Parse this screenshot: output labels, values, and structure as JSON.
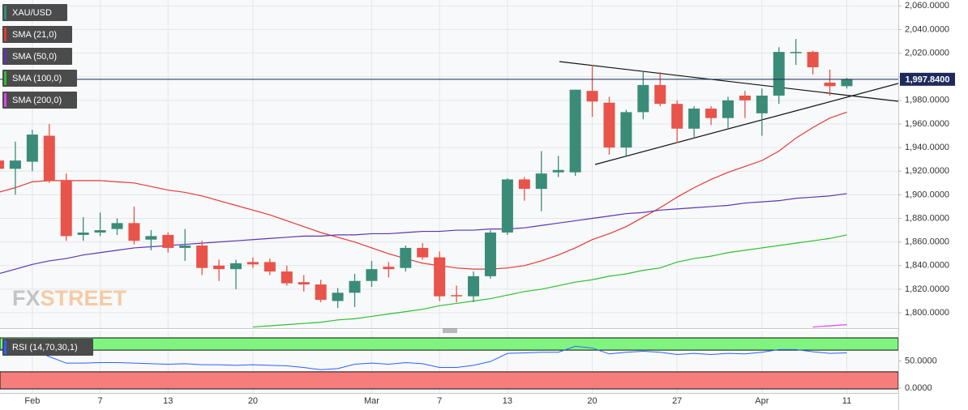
{
  "chart_data": {
    "type": "candlestick",
    "symbol": "XAU/USD",
    "categories": [
      null,
      null,
      "Feb",
      null,
      null,
      null,
      "7",
      null,
      null,
      null,
      "13",
      null,
      null,
      null,
      null,
      "20",
      null,
      null,
      null,
      null,
      null,
      null,
      "Mar",
      null,
      null,
      null,
      "7",
      null,
      null,
      null,
      "13",
      null,
      null,
      null,
      null,
      "20",
      null,
      null,
      null,
      null,
      "27",
      null,
      null,
      null,
      null,
      "Apr",
      null,
      null,
      null,
      null,
      "11"
    ],
    "open": [
      1929,
      1922,
      1928,
      1950,
      1912,
      1866,
      1868,
      1871,
      1876,
      1862,
      1866,
      1855,
      1857,
      1840,
      1837,
      1843,
      1843,
      1835,
      1826,
      1824,
      1810,
      1817,
      1827,
      1839,
      1838,
      1855,
      1847,
      1815,
      1814,
      1831,
      1868,
      1913,
      1905,
      1919,
      1919,
      1988,
      1978,
      1940,
      1970,
      1993,
      1977,
      1956,
      1973,
      1965,
      1984,
      1969,
      1984,
      2020,
      2021,
      1995,
      1992
    ],
    "high": [
      1935,
      1945,
      1955,
      1960,
      1918,
      1881,
      1885,
      1880,
      1890,
      1870,
      1868,
      1871,
      1861,
      1845,
      1845,
      1847,
      1846,
      1840,
      1832,
      1828,
      1821,
      1833,
      1844,
      1843,
      1857,
      1859,
      1852,
      1823,
      1835,
      1870,
      1914,
      1915,
      1937,
      1933,
      1989,
      2010,
      1983,
      1972,
      2004,
      2004,
      1980,
      1975,
      1975,
      1983,
      1988,
      1990,
      2025,
      2032,
      2022,
      2006,
      1999
    ],
    "low": [
      1920,
      1900,
      1920,
      1910,
      1861,
      1861,
      1865,
      1866,
      1858,
      1853,
      1851,
      1844,
      1832,
      1827,
      1820,
      1838,
      1832,
      1823,
      1818,
      1809,
      1804,
      1805,
      1822,
      1830,
      1835,
      1845,
      1810,
      1809,
      1809,
      1829,
      1866,
      1895,
      1886,
      1915,
      1916,
      1966,
      1934,
      1933,
      1964,
      1975,
      1944,
      1949,
      1959,
      1955,
      1965,
      1950,
      1977,
      2010,
      2002,
      1984,
      1990
    ],
    "close": [
      1922,
      1929,
      1951,
      1912,
      1865,
      1868,
      1870,
      1876,
      1861,
      1865,
      1855,
      1857,
      1838,
      1837,
      1842,
      1841,
      1835,
      1825,
      1824,
      1811,
      1817,
      1827,
      1837,
      1837,
      1855,
      1847,
      1814,
      1814,
      1831,
      1868,
      1913,
      1905,
      1918,
      1921,
      1989,
      1979,
      1940,
      1970,
      1993,
      1977,
      1956,
      1973,
      1965,
      1980,
      1980,
      1984,
      2021,
      2021,
      2008,
      1992,
      1997.84
    ],
    "up_color": "#3a8c78",
    "down_color": "#e8534a",
    "series": [
      {
        "name": "SMA (21,0)",
        "color": "#e53935",
        "values": [
          1902,
          1906,
          1911,
          1912,
          1912,
          1912,
          1912,
          1911,
          1910,
          1907,
          1904,
          1902,
          1899,
          1895,
          1891,
          1887,
          1883,
          1878,
          1873,
          1868,
          1864,
          1860,
          1855,
          1850,
          1846,
          1842,
          1840,
          1838,
          1837,
          1837,
          1838,
          1840,
          1844,
          1849,
          1855,
          1862,
          1867,
          1873,
          1881,
          1889,
          1898,
          1906,
          1913,
          1919,
          1924,
          1929,
          1937,
          1948,
          1957,
          1965,
          1970
        ]
      },
      {
        "name": "SMA (50,0)",
        "color": "#5e35b1",
        "values": [
          1833,
          1837,
          1841,
          1844,
          1846,
          1849,
          1851,
          1853,
          1855,
          1856,
          1857,
          1858,
          1859,
          1860,
          1861,
          1862,
          1863,
          1864,
          1865,
          1865,
          1866,
          1866,
          1867,
          1867,
          1868,
          1869,
          1869,
          1870,
          1870,
          1871,
          1871,
          1872,
          1874,
          1876,
          1878,
          1880,
          1882,
          1884,
          1885,
          1887,
          1888,
          1889,
          1890,
          1891,
          1893,
          1894,
          1895,
          1897,
          1898,
          1899,
          1901
        ]
      },
      {
        "name": "SMA (100,0)",
        "color": "#2fbf2f",
        "values": [
          null,
          null,
          null,
          null,
          null,
          null,
          null,
          null,
          null,
          null,
          null,
          null,
          null,
          null,
          null,
          1788,
          1789,
          1790,
          1791,
          1792,
          1794,
          1795,
          1797,
          1799,
          1801,
          1803,
          1806,
          1808,
          1810,
          1812,
          1815,
          1818,
          1820,
          1823,
          1826,
          1828,
          1831,
          1833,
          1836,
          1838,
          1843,
          1846,
          1848,
          1851,
          1853,
          1855,
          1857,
          1859,
          1861,
          1863,
          1866
        ]
      },
      {
        "name": "SMA (200,0)",
        "color": "#e040fb",
        "values": [
          null,
          null,
          null,
          null,
          null,
          null,
          null,
          null,
          null,
          null,
          null,
          null,
          null,
          null,
          null,
          null,
          null,
          null,
          null,
          null,
          null,
          null,
          null,
          null,
          null,
          null,
          null,
          null,
          null,
          null,
          null,
          null,
          null,
          null,
          null,
          null,
          null,
          null,
          null,
          null,
          null,
          null,
          null,
          null,
          null,
          null,
          null,
          null,
          1788,
          1789,
          1790
        ]
      }
    ],
    "last_price": {
      "value": 1997.84,
      "label": "1,997.8400"
    },
    "ylim": [
      1787,
      2065
    ],
    "yticks": [
      {
        "value": 2060,
        "label": "2,060.0000"
      },
      {
        "value": 2040,
        "label": "2,040.0000"
      },
      {
        "value": 2020,
        "label": "2,020.0000"
      },
      {
        "value": 2000,
        "label": "2,000.0000"
      },
      {
        "value": 1980,
        "label": "1,980.0000"
      },
      {
        "value": 1960,
        "label": "1,960.0000"
      },
      {
        "value": 1940,
        "label": "1,940.0000"
      },
      {
        "value": 1920,
        "label": "1,920.0000"
      },
      {
        "value": 1900,
        "label": "1,900.0000"
      },
      {
        "value": 1880,
        "label": "1,880.0000"
      },
      {
        "value": 1860,
        "label": "1,860.0000"
      },
      {
        "value": 1840,
        "label": "1,840.0000"
      },
      {
        "value": 1820,
        "label": "1,820.0000"
      },
      {
        "value": 1800,
        "label": "1,800.0000"
      }
    ],
    "grid": true,
    "watermark": {
      "left": "FX",
      "right": "STREET"
    },
    "rsi": {
      "name": "RSI (14,70,30,1)",
      "color": "#2962ff",
      "values": [
        71,
        73,
        70,
        58,
        46,
        46,
        47,
        47,
        46,
        45,
        44,
        45,
        43,
        43,
        42,
        43,
        42,
        41,
        38,
        34,
        36,
        44,
        46,
        44,
        47,
        45,
        38,
        38,
        42,
        49,
        64,
        65,
        66,
        66,
        77,
        74,
        63,
        66,
        68,
        66,
        62,
        64,
        62,
        64,
        63,
        66,
        71,
        71,
        67,
        64,
        65
      ],
      "ylim": [
        -9,
        106
      ],
      "yticks": [
        {
          "value": 50,
          "label": "50.0000"
        },
        {
          "value": 0,
          "label": "0.0000"
        }
      ],
      "overbought": 70,
      "oversold": 30,
      "overbought_color": "#7ff57f",
      "oversold_color": "#f77d7d"
    }
  }
}
